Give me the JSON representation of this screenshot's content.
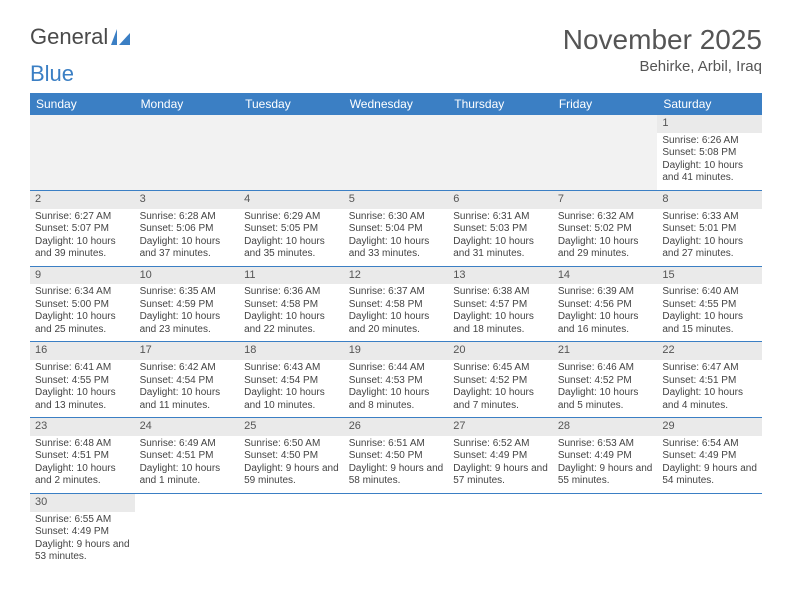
{
  "logo": {
    "text1": "General",
    "text2": "Blue"
  },
  "title": "November 2025",
  "location": "Behirke, Arbil, Iraq",
  "colors": {
    "header_bg": "#3b7fc4",
    "header_text": "#ffffff",
    "daynum_bg": "#eaeaea",
    "text": "#444444",
    "border": "#3b7fc4"
  },
  "day_labels": [
    "Sunday",
    "Monday",
    "Tuesday",
    "Wednesday",
    "Thursday",
    "Friday",
    "Saturday"
  ],
  "weeks": [
    [
      null,
      null,
      null,
      null,
      null,
      null,
      {
        "n": "1",
        "sr": "Sunrise: 6:26 AM",
        "ss": "Sunset: 5:08 PM",
        "dl": "Daylight: 10 hours and 41 minutes."
      }
    ],
    [
      {
        "n": "2",
        "sr": "Sunrise: 6:27 AM",
        "ss": "Sunset: 5:07 PM",
        "dl": "Daylight: 10 hours and 39 minutes."
      },
      {
        "n": "3",
        "sr": "Sunrise: 6:28 AM",
        "ss": "Sunset: 5:06 PM",
        "dl": "Daylight: 10 hours and 37 minutes."
      },
      {
        "n": "4",
        "sr": "Sunrise: 6:29 AM",
        "ss": "Sunset: 5:05 PM",
        "dl": "Daylight: 10 hours and 35 minutes."
      },
      {
        "n": "5",
        "sr": "Sunrise: 6:30 AM",
        "ss": "Sunset: 5:04 PM",
        "dl": "Daylight: 10 hours and 33 minutes."
      },
      {
        "n": "6",
        "sr": "Sunrise: 6:31 AM",
        "ss": "Sunset: 5:03 PM",
        "dl": "Daylight: 10 hours and 31 minutes."
      },
      {
        "n": "7",
        "sr": "Sunrise: 6:32 AM",
        "ss": "Sunset: 5:02 PM",
        "dl": "Daylight: 10 hours and 29 minutes."
      },
      {
        "n": "8",
        "sr": "Sunrise: 6:33 AM",
        "ss": "Sunset: 5:01 PM",
        "dl": "Daylight: 10 hours and 27 minutes."
      }
    ],
    [
      {
        "n": "9",
        "sr": "Sunrise: 6:34 AM",
        "ss": "Sunset: 5:00 PM",
        "dl": "Daylight: 10 hours and 25 minutes."
      },
      {
        "n": "10",
        "sr": "Sunrise: 6:35 AM",
        "ss": "Sunset: 4:59 PM",
        "dl": "Daylight: 10 hours and 23 minutes."
      },
      {
        "n": "11",
        "sr": "Sunrise: 6:36 AM",
        "ss": "Sunset: 4:58 PM",
        "dl": "Daylight: 10 hours and 22 minutes."
      },
      {
        "n": "12",
        "sr": "Sunrise: 6:37 AM",
        "ss": "Sunset: 4:58 PM",
        "dl": "Daylight: 10 hours and 20 minutes."
      },
      {
        "n": "13",
        "sr": "Sunrise: 6:38 AM",
        "ss": "Sunset: 4:57 PM",
        "dl": "Daylight: 10 hours and 18 minutes."
      },
      {
        "n": "14",
        "sr": "Sunrise: 6:39 AM",
        "ss": "Sunset: 4:56 PM",
        "dl": "Daylight: 10 hours and 16 minutes."
      },
      {
        "n": "15",
        "sr": "Sunrise: 6:40 AM",
        "ss": "Sunset: 4:55 PM",
        "dl": "Daylight: 10 hours and 15 minutes."
      }
    ],
    [
      {
        "n": "16",
        "sr": "Sunrise: 6:41 AM",
        "ss": "Sunset: 4:55 PM",
        "dl": "Daylight: 10 hours and 13 minutes."
      },
      {
        "n": "17",
        "sr": "Sunrise: 6:42 AM",
        "ss": "Sunset: 4:54 PM",
        "dl": "Daylight: 10 hours and 11 minutes."
      },
      {
        "n": "18",
        "sr": "Sunrise: 6:43 AM",
        "ss": "Sunset: 4:54 PM",
        "dl": "Daylight: 10 hours and 10 minutes."
      },
      {
        "n": "19",
        "sr": "Sunrise: 6:44 AM",
        "ss": "Sunset: 4:53 PM",
        "dl": "Daylight: 10 hours and 8 minutes."
      },
      {
        "n": "20",
        "sr": "Sunrise: 6:45 AM",
        "ss": "Sunset: 4:52 PM",
        "dl": "Daylight: 10 hours and 7 minutes."
      },
      {
        "n": "21",
        "sr": "Sunrise: 6:46 AM",
        "ss": "Sunset: 4:52 PM",
        "dl": "Daylight: 10 hours and 5 minutes."
      },
      {
        "n": "22",
        "sr": "Sunrise: 6:47 AM",
        "ss": "Sunset: 4:51 PM",
        "dl": "Daylight: 10 hours and 4 minutes."
      }
    ],
    [
      {
        "n": "23",
        "sr": "Sunrise: 6:48 AM",
        "ss": "Sunset: 4:51 PM",
        "dl": "Daylight: 10 hours and 2 minutes."
      },
      {
        "n": "24",
        "sr": "Sunrise: 6:49 AM",
        "ss": "Sunset: 4:51 PM",
        "dl": "Daylight: 10 hours and 1 minute."
      },
      {
        "n": "25",
        "sr": "Sunrise: 6:50 AM",
        "ss": "Sunset: 4:50 PM",
        "dl": "Daylight: 9 hours and 59 minutes."
      },
      {
        "n": "26",
        "sr": "Sunrise: 6:51 AM",
        "ss": "Sunset: 4:50 PM",
        "dl": "Daylight: 9 hours and 58 minutes."
      },
      {
        "n": "27",
        "sr": "Sunrise: 6:52 AM",
        "ss": "Sunset: 4:49 PM",
        "dl": "Daylight: 9 hours and 57 minutes."
      },
      {
        "n": "28",
        "sr": "Sunrise: 6:53 AM",
        "ss": "Sunset: 4:49 PM",
        "dl": "Daylight: 9 hours and 55 minutes."
      },
      {
        "n": "29",
        "sr": "Sunrise: 6:54 AM",
        "ss": "Sunset: 4:49 PM",
        "dl": "Daylight: 9 hours and 54 minutes."
      }
    ],
    [
      {
        "n": "30",
        "sr": "Sunrise: 6:55 AM",
        "ss": "Sunset: 4:49 PM",
        "dl": "Daylight: 9 hours and 53 minutes."
      },
      null,
      null,
      null,
      null,
      null,
      null
    ]
  ]
}
